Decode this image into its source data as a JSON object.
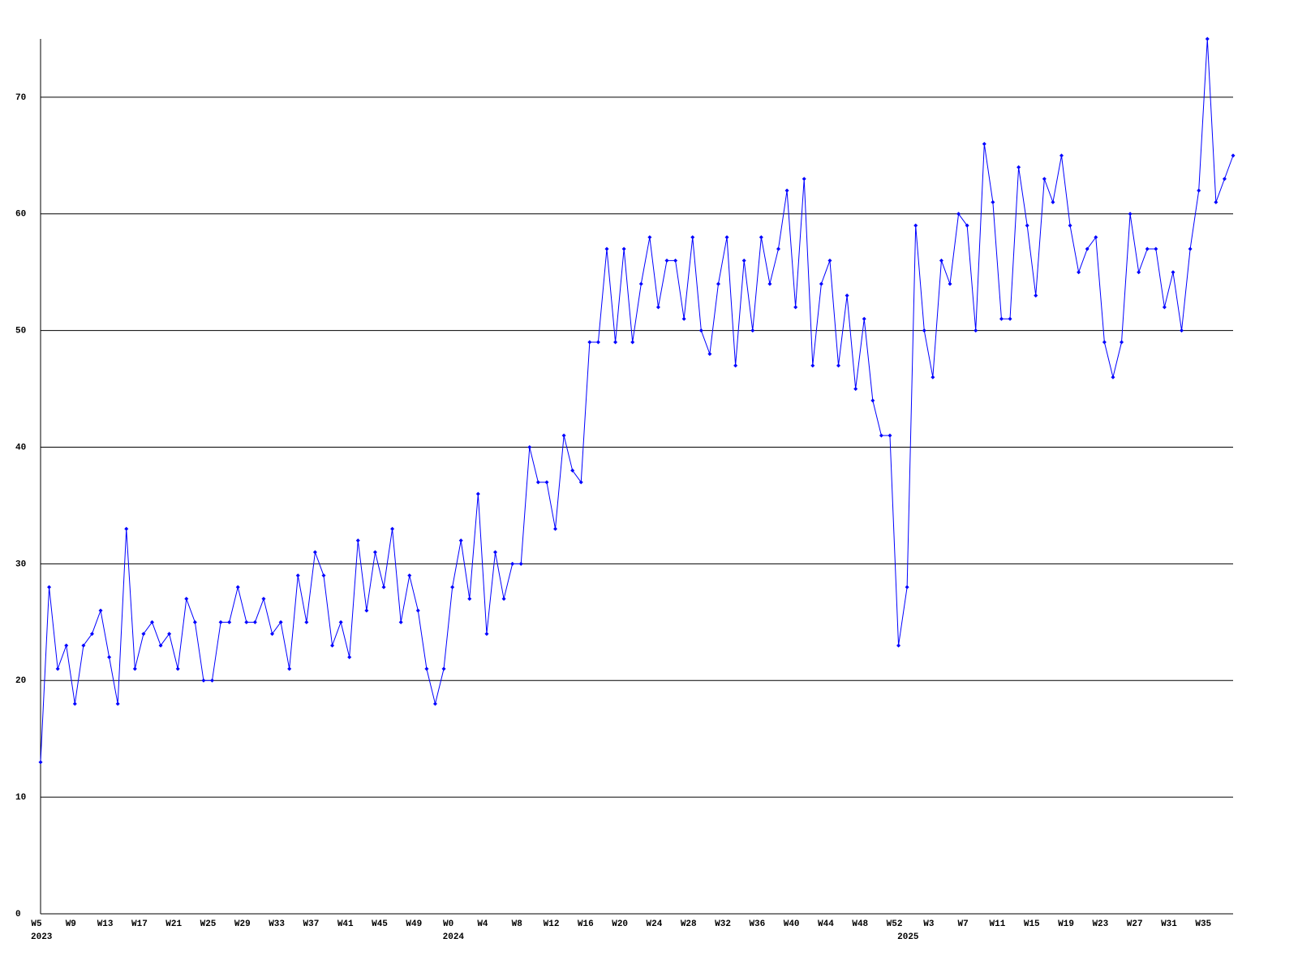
{
  "chart_data": {
    "type": "line",
    "categories": [
      "W5",
      null,
      null,
      null,
      "W9",
      null,
      null,
      null,
      "W13",
      null,
      null,
      null,
      "W17",
      null,
      null,
      null,
      "W21",
      null,
      null,
      null,
      "W25",
      null,
      null,
      null,
      "W29",
      null,
      null,
      null,
      "W33",
      null,
      null,
      null,
      "W37",
      null,
      null,
      null,
      "W41",
      null,
      null,
      null,
      "W45",
      null,
      null,
      null,
      "W49",
      null,
      null,
      null,
      "W0",
      null,
      null,
      null,
      "W4",
      null,
      null,
      null,
      "W8",
      null,
      null,
      null,
      "W12",
      null,
      null,
      null,
      "W16",
      null,
      null,
      null,
      "W20",
      null,
      null,
      null,
      "W24",
      null,
      null,
      null,
      "W28",
      null,
      null,
      null,
      "W32",
      null,
      null,
      null,
      "W36",
      null,
      null,
      null,
      "W40",
      null,
      null,
      null,
      "W44",
      null,
      null,
      null,
      "W48",
      null,
      null,
      null,
      "W52",
      null,
      null,
      null,
      "W3",
      null,
      null,
      null,
      "W7",
      null,
      null,
      null,
      "W11",
      null,
      null,
      null,
      "W15",
      null,
      null,
      null,
      "W19",
      null,
      null,
      null,
      "W23",
      null,
      null,
      null,
      "W27",
      null,
      null,
      null,
      "W31",
      null,
      null,
      null,
      "W35",
      null,
      null,
      null
    ],
    "year_labels": [
      "2023",
      null,
      null,
      null,
      null,
      null,
      null,
      null,
      null,
      null,
      null,
      null,
      null,
      null,
      null,
      null,
      null,
      null,
      null,
      null,
      null,
      null,
      null,
      null,
      null,
      null,
      null,
      null,
      null,
      null,
      null,
      null,
      null,
      null,
      null,
      null,
      null,
      null,
      null,
      null,
      null,
      null,
      null,
      null,
      null,
      null,
      null,
      null,
      "2024",
      null,
      null,
      null,
      null,
      null,
      null,
      null,
      null,
      null,
      null,
      null,
      null,
      null,
      null,
      null,
      null,
      null,
      null,
      null,
      null,
      null,
      null,
      null,
      null,
      null,
      null,
      null,
      null,
      null,
      null,
      null,
      null,
      null,
      null,
      null,
      null,
      null,
      null,
      null,
      null,
      null,
      null,
      null,
      null,
      null,
      null,
      null,
      null,
      null,
      null,
      null,
      null,
      "2025",
      null,
      null,
      null,
      null,
      null,
      null,
      null,
      null,
      null,
      null,
      null,
      null,
      null,
      null,
      null,
      null,
      null,
      null,
      null,
      null,
      null,
      null,
      null,
      null,
      null,
      null,
      null,
      null,
      null,
      null,
      null,
      null,
      null,
      null,
      null,
      null,
      null
    ],
    "values": [
      13,
      28,
      21,
      23,
      18,
      23,
      24,
      26,
      22,
      18,
      33,
      21,
      24,
      25,
      23,
      24,
      21,
      27,
      25,
      20,
      20,
      25,
      25,
      28,
      25,
      25,
      27,
      24,
      25,
      21,
      29,
      25,
      31,
      29,
      23,
      25,
      22,
      32,
      26,
      31,
      28,
      33,
      25,
      29,
      26,
      21,
      18,
      21,
      28,
      32,
      27,
      36,
      24,
      31,
      27,
      30,
      30,
      40,
      37,
      37,
      33,
      41,
      38,
      37,
      49,
      49,
      57,
      49,
      57,
      49,
      54,
      58,
      52,
      56,
      56,
      51,
      58,
      50,
      48,
      54,
      58,
      47,
      56,
      50,
      58,
      54,
      57,
      62,
      52,
      63,
      47,
      54,
      56,
      47,
      53,
      45,
      51,
      44,
      41,
      41,
      23,
      28,
      59,
      50,
      46,
      56,
      54,
      60,
      59,
      50,
      66,
      61,
      51,
      51,
      64,
      59,
      53,
      63,
      61,
      65,
      59,
      55,
      57,
      58,
      49,
      46,
      49,
      60,
      55,
      57,
      57,
      52,
      55,
      50,
      57,
      62,
      75,
      61,
      63,
      65
    ],
    "color": "#0000ff",
    "ylim": [
      0,
      75
    ],
    "yticks": [
      0,
      10,
      20,
      30,
      40,
      50,
      60,
      70
    ],
    "grid": true
  }
}
